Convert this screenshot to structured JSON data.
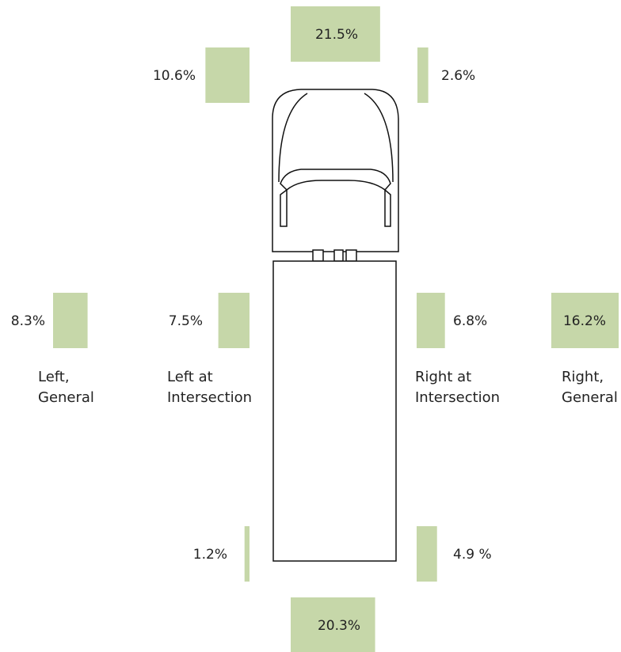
{
  "chart_data": {
    "type": "bar",
    "categories": [
      null,
      null,
      null,
      "Left, General",
      "Left at Intersection",
      "Right at Intersection",
      "Right, General",
      null,
      null,
      null
    ],
    "values": [
      21.5,
      10.6,
      2.6,
      8.3,
      7.5,
      6.8,
      16.2,
      1.2,
      4.9,
      20.3
    ],
    "value_labels": [
      "21.5%",
      "10.6%",
      "2.6%",
      "8.3%",
      "7.5%",
      "6.8%",
      "16.2%",
      "1.2%",
      "4.9 %",
      "20.3%"
    ],
    "color": "#c6d7a9"
  }
}
